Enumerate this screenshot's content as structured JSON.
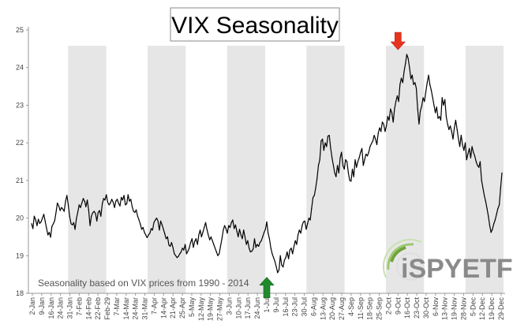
{
  "chart_data": {
    "type": "line",
    "title": "VIX Seasonality",
    "xlabel": "",
    "ylabel": "",
    "ylim": [
      18,
      25
    ],
    "yticks": [
      18,
      19,
      20,
      21,
      22,
      23,
      24,
      25
    ],
    "grid": false,
    "shaded_month_bands": [
      "Feb",
      "Apr",
      "Jun",
      "Aug",
      "Oct",
      "Dec"
    ],
    "annotation": "Seasonality based on VIX prices from 1990 - 2014",
    "markers": [
      {
        "label": "peak",
        "color": "#e8341c",
        "x": "9-Oct",
        "value": 24.35
      },
      {
        "label": "trough",
        "color": "#1f8a2b",
        "x": "1-Jul",
        "value": 18.55
      }
    ],
    "xtick_labels": [
      "2-Jan",
      "9-Jan",
      "16-Jan",
      "24-Jan",
      "31-Jan",
      "7-Feb",
      "14-Feb",
      "22-Feb",
      "Feb-29",
      "7-Mar",
      "14-Mar",
      "24-Mar",
      "31-Mar",
      "7-Apr",
      "14-Apr",
      "21-Apr",
      "25-Apr",
      "5-May",
      "12-May",
      "19-May",
      "27-May",
      "3-Jun",
      "10-Jun",
      "17-Jun",
      "24-Jun",
      "1-Jul",
      "9-Jul",
      "16-Jul",
      "23-Jul",
      "30-Jul",
      "6-Aug",
      "13-Aug",
      "20-Aug",
      "27-Aug",
      "4-Sep",
      "11-Sep",
      "18-Sep",
      "25-Sep",
      "2-Oct",
      "9-Oct",
      "16-Oct",
      "23-Oct",
      "30-Oct",
      "6-Nov",
      "13-Nov",
      "19-Nov",
      "28-Nov",
      "5-Dec",
      "12-Dec",
      "19-Dec",
      "29-Dec"
    ],
    "series": [
      {
        "values": [
          19.85,
          19.72,
          20.05,
          19.95,
          19.8,
          19.97,
          19.86,
          19.9,
          20.0,
          20.1,
          19.92,
          19.74,
          19.55,
          19.62,
          19.49,
          19.78,
          19.85,
          19.93,
          20.15,
          20.4,
          20.32,
          20.2,
          20.28,
          20.24,
          20.18,
          20.45,
          20.6,
          20.35,
          20.05,
          19.85,
          19.82,
          19.88,
          19.7,
          19.98,
          20.16,
          20.35,
          20.28,
          20.4,
          20.52,
          20.45,
          20.3,
          20.48,
          20.22,
          19.8,
          20.05,
          20.14,
          20.18,
          20.12,
          19.92,
          20.15,
          20.2,
          20.05,
          20.38,
          20.52,
          20.48,
          20.62,
          20.42,
          20.35,
          20.4,
          20.5,
          20.42,
          20.28,
          20.45,
          20.5,
          20.4,
          20.32,
          20.55,
          20.48,
          20.6,
          20.35,
          20.38,
          20.62,
          20.45,
          20.5,
          20.3,
          20.18,
          20.15,
          20.22,
          20.05,
          19.95,
          19.84,
          19.7,
          19.75,
          19.62,
          19.55,
          19.48,
          19.55,
          19.6,
          19.72,
          19.68,
          19.88,
          19.95,
          20.0,
          19.92,
          19.68,
          19.92,
          19.82,
          19.7,
          19.58,
          19.45,
          19.5,
          19.28,
          19.25,
          19.35,
          19.22,
          19.05,
          19.0,
          18.95,
          18.98,
          19.05,
          19.1,
          19.2,
          19.15,
          19.3,
          19.05,
          19.12,
          19.2,
          19.35,
          19.45,
          19.22,
          19.38,
          19.45,
          19.3,
          19.55,
          19.68,
          19.5,
          19.62,
          19.75,
          19.88,
          19.7,
          19.55,
          19.42,
          19.5,
          19.4,
          19.3,
          19.2,
          19.1,
          19.0,
          19.05,
          19.25,
          19.45,
          19.68,
          19.8,
          19.72,
          19.6,
          19.8,
          19.75,
          19.88,
          19.95,
          19.72,
          19.82,
          19.65,
          19.5,
          19.7,
          19.55,
          19.45,
          19.68,
          19.5,
          19.3,
          19.4,
          19.2,
          19.1,
          19.12,
          19.18,
          19.45,
          19.22,
          19.3,
          19.25,
          19.35,
          19.4,
          19.5,
          19.62,
          19.7,
          19.9,
          19.6,
          19.45,
          19.2,
          19.05,
          18.95,
          18.85,
          18.7,
          18.55,
          18.62,
          19.0,
          18.75,
          18.7,
          18.88,
          18.95,
          19.1,
          18.92,
          19.15,
          19.2,
          19.05,
          19.25,
          19.4,
          19.3,
          19.55,
          19.68,
          19.6,
          19.8,
          19.9,
          19.92,
          19.7,
          19.85,
          20.0,
          19.95,
          20.25,
          20.55,
          20.6,
          20.8,
          21.05,
          21.4,
          21.55,
          22.05,
          22.1,
          21.8,
          22.0,
          21.9,
          22.18,
          22.2,
          21.85,
          21.6,
          21.4,
          21.2,
          21.1,
          21.4,
          21.2,
          21.6,
          21.75,
          21.4,
          21.3,
          21.55,
          21.5,
          21.2,
          21.0,
          20.98,
          21.3,
          21.1,
          21.55,
          21.35,
          21.5,
          21.6,
          21.75,
          21.85,
          21.4,
          21.55,
          21.7,
          21.65,
          21.75,
          21.9,
          21.98,
          22.05,
          22.2,
          22.1,
          21.95,
          22.25,
          22.4,
          22.3,
          22.55,
          22.5,
          22.3,
          22.45,
          22.7,
          22.6,
          22.9,
          22.8,
          22.55,
          22.9,
          23.1,
          23.25,
          23.1,
          23.55,
          23.72,
          23.6,
          23.9,
          24.1,
          24.35,
          24.25,
          24.0,
          23.7,
          23.8,
          23.55,
          23.6,
          23.45,
          22.9,
          22.5,
          22.85,
          22.98,
          23.2,
          23.1,
          23.35,
          23.6,
          23.8,
          23.55,
          23.4,
          23.2,
          23.0,
          22.8,
          22.95,
          22.65,
          22.7,
          22.6,
          23.2,
          23.0,
          23.15,
          22.7,
          22.5,
          22.35,
          22.45,
          22.3,
          22.1,
          22.4,
          22.6,
          22.35,
          22.1,
          21.9,
          22.2,
          21.95,
          21.8,
          22.0,
          21.55,
          21.7,
          21.85,
          21.6,
          21.9,
          21.75,
          21.65,
          21.5,
          21.4,
          21.35,
          21.5,
          21.0,
          20.8,
          20.6,
          20.45,
          20.25,
          20.05,
          19.8,
          19.62,
          19.7,
          19.85,
          19.95,
          20.1,
          20.25,
          20.35,
          20.8,
          21.2
        ]
      }
    ]
  }
}
